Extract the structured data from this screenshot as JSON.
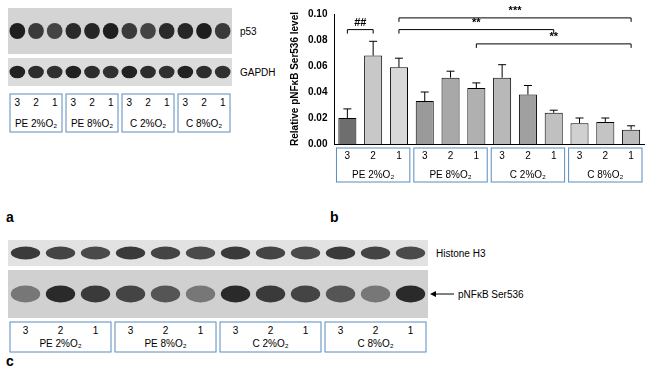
{
  "panel_letters": [
    "a",
    "b",
    "c"
  ],
  "blot_a": {
    "bands": [
      "p53",
      "GAPDH"
    ],
    "lanes": [
      "3",
      "2",
      "1"
    ],
    "groups": [
      "PE 2%O₂",
      "PE 8%O₂",
      "C 2%O₂",
      "C 8%O₂"
    ]
  },
  "blot_c": {
    "bands": [
      "Histone H3",
      "pNFκB Ser536"
    ],
    "lanes": [
      "3",
      "2",
      "1"
    ],
    "groups": [
      "PE 2%O₂",
      "PE 8%O₂",
      "C 2%O₂",
      "C 8%O₂"
    ]
  },
  "chart_data": {
    "type": "bar",
    "y_label": "Relative pNFκB Ser536 level",
    "categories": [
      "3",
      "2",
      "1",
      "3",
      "2",
      "1",
      "3",
      "2",
      "1",
      "3",
      "2",
      "1"
    ],
    "groups": [
      "PE 2%O₂",
      "PE 8%O₂",
      "C 2%O₂",
      "C 8%O₂"
    ],
    "values": [
      0.02,
      0.068,
      0.059,
      0.033,
      0.051,
      0.043,
      0.051,
      0.038,
      0.024,
      0.016,
      0.017,
      0.011
    ],
    "errors": [
      0.007,
      0.011,
      0.007,
      0.007,
      0.005,
      0.004,
      0.01,
      0.007,
      0.002,
      0.004,
      0.003,
      0.003
    ],
    "colors": [
      "#6e6e6e",
      "#c8c8c8",
      "#d8d8d8",
      "#9a9a9a",
      "#a8a8a8",
      "#b0b0b0",
      "#b8b8b8",
      "#a0a0a0",
      "#c0c0c0",
      "#d0d0d0",
      "#c4c4c4",
      "#bcbcbc"
    ],
    "ylim": [
      0,
      0.1
    ],
    "yticks": [
      {
        "value": 0,
        "label": "0.00"
      },
      {
        "value": 0.02,
        "label": "0.02"
      },
      {
        "value": 0.04,
        "label": "0.04"
      },
      {
        "value": 0.06,
        "label": "0.06"
      },
      {
        "value": 0.08,
        "label": "0.08"
      },
      {
        "value": 0.1,
        "label": "0.10"
      }
    ],
    "annotations": [
      {
        "text": "##",
        "from": 0,
        "to": 1,
        "y": 0.088
      },
      {
        "text": "***",
        "from": 2,
        "to": 11,
        "y": 0.097
      },
      {
        "text": "**",
        "from": 2,
        "to": 8,
        "y": 0.088
      },
      {
        "text": "**",
        "from": 5,
        "to": 11,
        "y": 0.077
      }
    ],
    "grid": false
  }
}
